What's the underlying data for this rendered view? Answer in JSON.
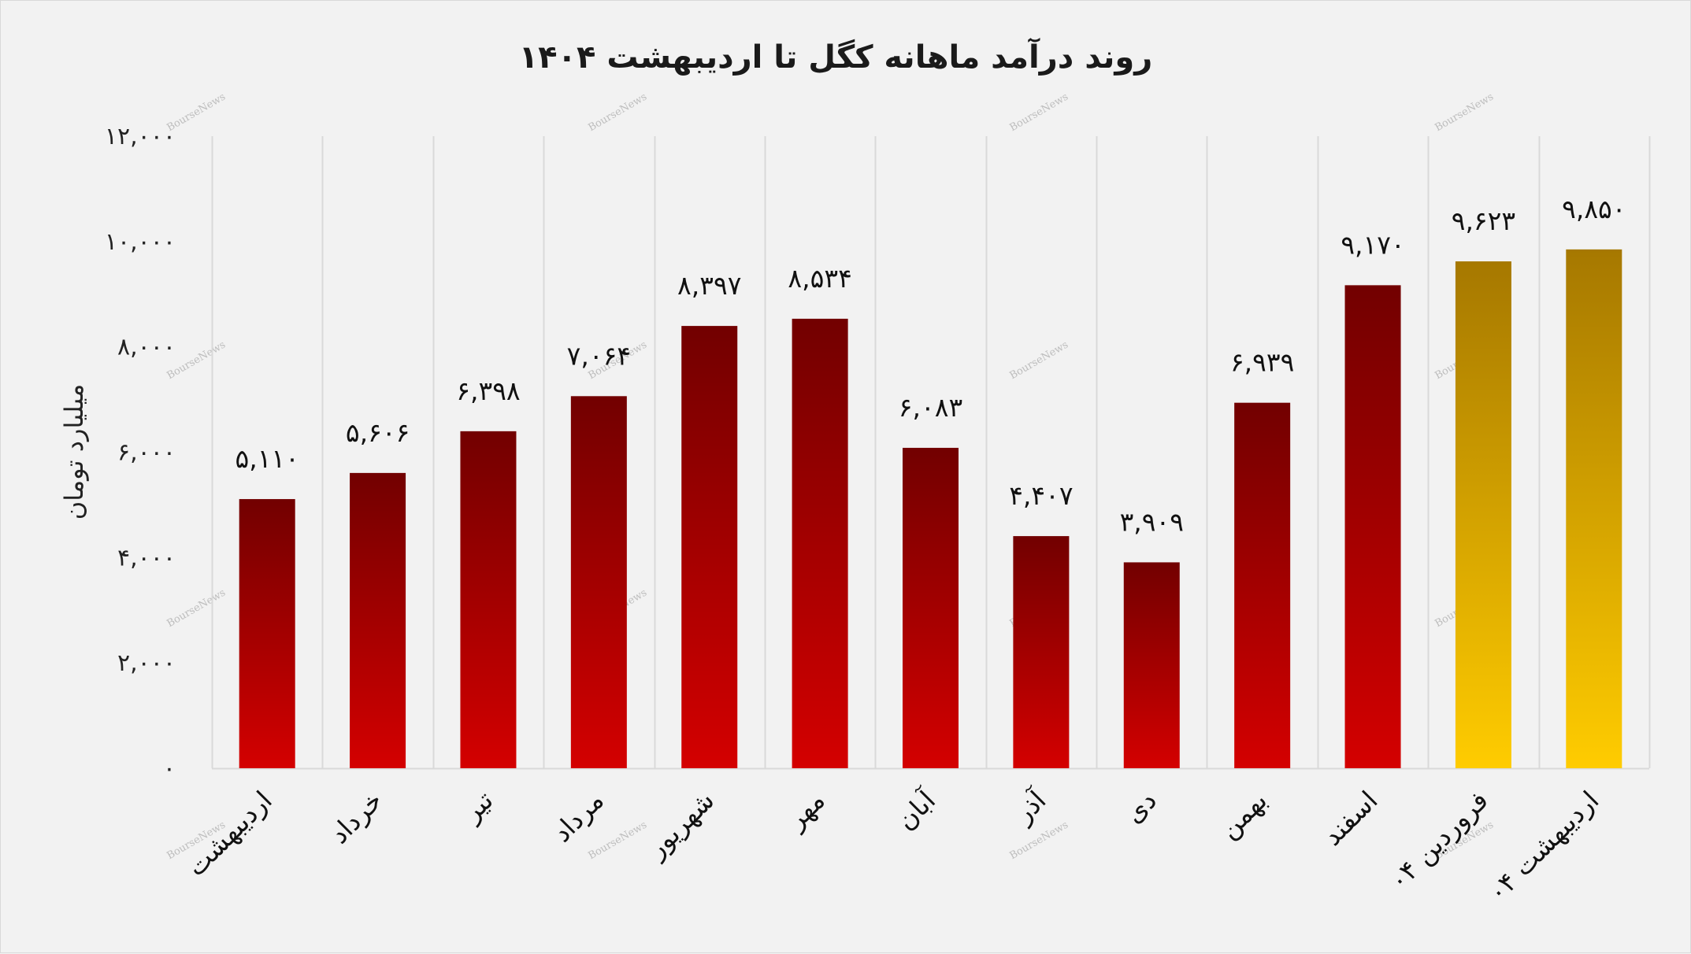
{
  "chart_data": {
    "type": "bar",
    "title": "روند درآمد ماهانه کگل تا اردیبهشت ۱۴۰۴",
    "ylabel": "میلیارد تومان",
    "xlabel": "",
    "ylim": [
      0,
      12000
    ],
    "yticks": [
      0,
      2000,
      4000,
      6000,
      8000,
      10000,
      12000
    ],
    "ytick_labels": [
      "۰",
      "۲,۰۰۰",
      "۴,۰۰۰",
      "۶,۰۰۰",
      "۸,۰۰۰",
      "۱۰,۰۰۰",
      "۱۲,۰۰۰"
    ],
    "grid": "vertical category separators",
    "categories": [
      "اردیبهشت",
      "خرداد",
      "تیر",
      "مرداد",
      "شهریور",
      "مهر",
      "آبان",
      "آذر",
      "دی",
      "بهمن",
      "اسفند",
      "فروردین ۰۴",
      "اردیبهشت ۰۴"
    ],
    "values": [
      5110,
      5606,
      6398,
      7064,
      8397,
      8534,
      6083,
      4407,
      3909,
      6939,
      9170,
      9623,
      9850
    ],
    "value_labels": [
      "۵,۱۱۰",
      "۵,۶۰۶",
      "۶,۳۹۸",
      "۷,۰۶۴",
      "۸,۳۹۷",
      "۸,۵۳۴",
      "۶,۰۸۳",
      "۴,۴۰۷",
      "۳,۹۰۹",
      "۶,۹۳۹",
      "۹,۱۷۰",
      "۹,۶۲۳",
      "۹,۸۵۰"
    ],
    "bar_styles": [
      "red",
      "red",
      "red",
      "red",
      "red",
      "red",
      "red",
      "red",
      "red",
      "red",
      "red",
      "gold",
      "gold"
    ],
    "colors": {
      "red_top": "#720000",
      "red_bottom": "#d40000",
      "gold_top": "#a67800",
      "gold_bottom": "#ffcc00",
      "grid": "#d9d9d9",
      "background": "#f2f2f2"
    },
    "watermark": "BourseNews"
  }
}
